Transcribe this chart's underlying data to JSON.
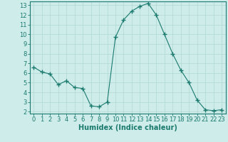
{
  "x": [
    0,
    1,
    2,
    3,
    4,
    5,
    6,
    7,
    8,
    9,
    10,
    11,
    12,
    13,
    14,
    15,
    16,
    17,
    18,
    19,
    20,
    21,
    22,
    23
  ],
  "y": [
    6.6,
    6.1,
    5.9,
    4.8,
    5.2,
    4.5,
    4.4,
    2.6,
    2.5,
    3.0,
    9.7,
    11.5,
    12.4,
    12.9,
    13.2,
    12.0,
    10.0,
    8.0,
    6.3,
    5.0,
    3.2,
    2.2,
    2.1,
    2.2
  ],
  "line_color": "#1a7a6e",
  "marker": "+",
  "marker_size": 4,
  "marker_linewidth": 1.0,
  "bg_color": "#ceecea",
  "grid_color": "#b0d8d4",
  "xlabel": "Humidex (Indice chaleur)",
  "xlabel_fontsize": 7,
  "tick_fontsize": 6,
  "ylim": [
    1.8,
    13.4
  ],
  "xlim": [
    -0.5,
    23.5
  ],
  "yticks": [
    2,
    3,
    4,
    5,
    6,
    7,
    8,
    9,
    10,
    11,
    12,
    13
  ],
  "xticks": [
    0,
    1,
    2,
    3,
    4,
    5,
    6,
    7,
    8,
    9,
    10,
    11,
    12,
    13,
    14,
    15,
    16,
    17,
    18,
    19,
    20,
    21,
    22,
    23
  ]
}
